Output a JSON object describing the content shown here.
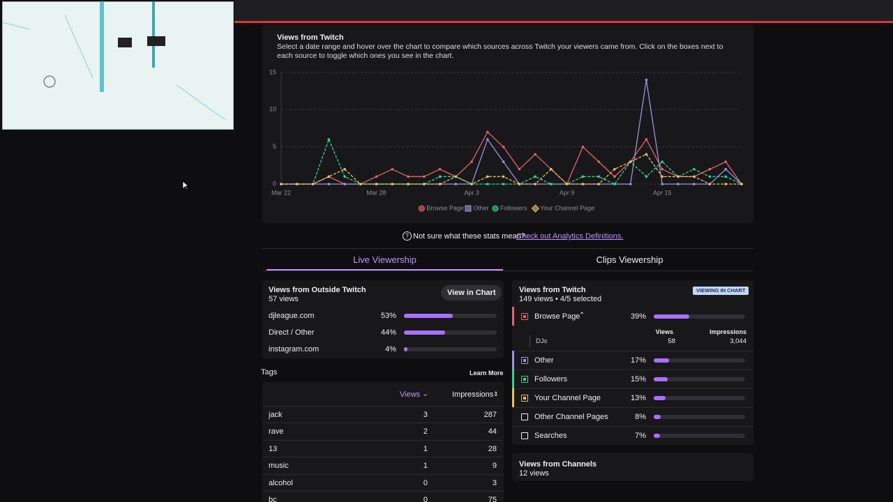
{
  "chart_data": {
    "type": "line",
    "title": "Views from Twitch",
    "subtitle": "Select a date range and hover over the chart to compare which sources across Twitch your viewers came from. Click on the boxes next to each source to toggle which ones you see in the chart.",
    "categories": [
      "Mar 22",
      null,
      null,
      null,
      null,
      null,
      "Mar 28",
      null,
      null,
      null,
      null,
      null,
      "Apr 3",
      null,
      null,
      null,
      null,
      null,
      "Apr 9",
      null,
      null,
      null,
      null,
      null,
      "Apr 15",
      null,
      null,
      null,
      null,
      null
    ],
    "series": [
      {
        "name": "Browse Page",
        "color": "#e5636f",
        "marker": "circle",
        "line_style": "solid",
        "values": [
          0,
          0,
          0,
          1,
          0,
          0,
          1,
          2,
          1,
          1,
          2,
          1,
          3,
          7,
          5,
          2,
          4,
          2,
          0,
          5,
          3,
          1,
          3,
          6,
          2,
          1,
          1,
          2,
          3,
          0
        ]
      },
      {
        "name": "Other",
        "color": "#9a96dc",
        "marker": "square",
        "line_style": "solid",
        "values": [
          0,
          0,
          0,
          0,
          0,
          0,
          0,
          0,
          0,
          0,
          0,
          0,
          0,
          6,
          3,
          0,
          0,
          0,
          0,
          0,
          0,
          0,
          0,
          14,
          0,
          0,
          0,
          0,
          2,
          0
        ]
      },
      {
        "name": "Followers",
        "color": "#3ad18b",
        "marker": "circle",
        "line_style": "dashed",
        "values": [
          0,
          0,
          0,
          6,
          1,
          0,
          0,
          0,
          0,
          0,
          1,
          1,
          0,
          0,
          0,
          0,
          1,
          0,
          0,
          1,
          1,
          0,
          3,
          1,
          3,
          1,
          2,
          1,
          1,
          0
        ]
      },
      {
        "name": "Your Channel Page",
        "color": "#e8c061",
        "marker": "diamond",
        "line_style": "dashed",
        "values": [
          0,
          0,
          0,
          1,
          2,
          0,
          0,
          0,
          0,
          0,
          0,
          1,
          0,
          1,
          1,
          0,
          0,
          2,
          0,
          0,
          0,
          2,
          3,
          4,
          1,
          1,
          1,
          0,
          0,
          0
        ]
      }
    ],
    "ylim": [
      0,
      15
    ],
    "yticks": [
      0,
      5,
      10,
      15
    ],
    "grid": true,
    "legend": "bottom"
  },
  "help": {
    "text": "Not sure what these stats mean?",
    "link": "Check out Analytics Definitions."
  },
  "tabs": [
    "Live Viewership",
    "Clips Viewership"
  ],
  "outside": {
    "title": "Views from Outside Twitch",
    "subtitle": "57 views",
    "button": "View in Chart",
    "rows": [
      {
        "name": "djleague.com",
        "value": 53,
        "label": "53%"
      },
      {
        "name": "Direct / Other",
        "value": 44,
        "label": "44%"
      },
      {
        "name": "instagram.com",
        "value": 4,
        "label": "4%"
      }
    ]
  },
  "tags": {
    "title": "Tags",
    "link": "Learn More",
    "columns": [
      "Views",
      "Impressions"
    ],
    "rows": [
      [
        "jack",
        "3",
        "287"
      ],
      [
        "rave",
        "2",
        "44"
      ],
      [
        "13",
        "1",
        "28"
      ],
      [
        "music",
        "1",
        "9"
      ],
      [
        "alcohol",
        "0",
        "3"
      ],
      [
        "bc",
        "0",
        "75"
      ]
    ]
  },
  "twitch": {
    "title": "Views from Twitch",
    "subtitle": "149 views • 4/5 selected",
    "badge": "VIEWING IN CHART",
    "rows": [
      {
        "name": "Browse Page",
        "value": 39,
        "label": "39%",
        "color": "#e5636f"
      },
      {
        "name": "Other",
        "value": 17,
        "label": "17%",
        "color": "#9a96dc"
      },
      {
        "name": "Followers",
        "value": 15,
        "label": "15%",
        "color": "#3ad18b"
      },
      {
        "name": "Your Channel Page",
        "value": 13,
        "label": "13%",
        "color": "#e8c061"
      },
      {
        "name": "Other Channel Pages",
        "value": 8,
        "label": "8%"
      },
      {
        "name": "Searches",
        "value": 7,
        "label": "7%"
      }
    ],
    "detail": {
      "columns": [
        "Views",
        "Impressions"
      ],
      "rows": [
        [
          "DJs",
          "58",
          "3,044"
        ]
      ]
    }
  },
  "channels": {
    "title": "Views from Channels",
    "subtitle": "12 views"
  }
}
